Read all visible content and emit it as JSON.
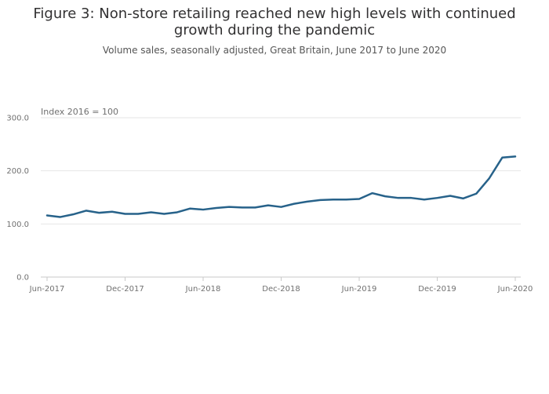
{
  "chart_data": {
    "type": "line",
    "title_line1": "Figure 3: Non-store retailing reached new high levels with continued",
    "title_line2": "growth during the pandemic",
    "subtitle": "Volume sales, seasonally adjusted, Great Britain, June 2017 to June 2020",
    "ylabel": "Index 2016 = 100",
    "ylim": [
      0,
      300
    ],
    "yticks": [
      "300.0",
      "200.0",
      "100.0",
      "0.0"
    ],
    "ytick_values": [
      300,
      200,
      100,
      0
    ],
    "xticks": [
      "Jun-2017",
      "Dec-2017",
      "Jun-2018",
      "Dec-2018",
      "Jun-2019",
      "Dec-2019",
      "Jun-2020"
    ],
    "xtick_months": [
      0,
      6,
      12,
      18,
      24,
      30,
      36
    ],
    "grid": true,
    "line_color": "#27628a",
    "series": [
      {
        "values": [
          116,
          113,
          118,
          125,
          121,
          123,
          119,
          119,
          122,
          119,
          122,
          129,
          127,
          130,
          132,
          131,
          131,
          135,
          132,
          138,
          142,
          145,
          146,
          146,
          147,
          158,
          152,
          149,
          149,
          146,
          149,
          153,
          148,
          157,
          186,
          225,
          227
        ]
      }
    ]
  }
}
